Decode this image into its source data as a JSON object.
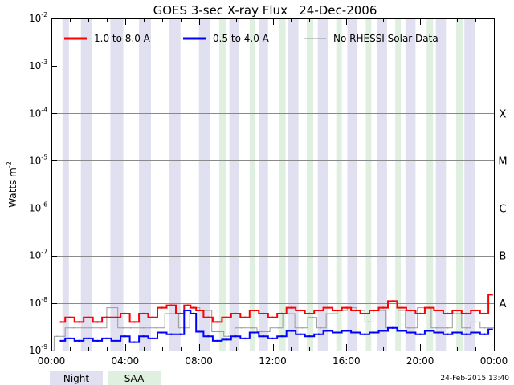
{
  "chart_data": {
    "type": "line",
    "title": "GOES 3-sec X-ray Flux   24-Dec-2006",
    "ylabel_main": "Watts m",
    "ylabel_sup": "-2",
    "xlabel": "",
    "x_unit": "hours UT",
    "xlim": [
      0,
      24
    ],
    "ylim": [
      1e-09,
      0.01
    ],
    "yscale": "log",
    "x_ticks": [
      {
        "value": 0,
        "label": "00:00"
      },
      {
        "value": 4,
        "label": "04:00"
      },
      {
        "value": 8,
        "label": "08:00"
      },
      {
        "value": 12,
        "label": "12:00"
      },
      {
        "value": 16,
        "label": "16:00"
      },
      {
        "value": 20,
        "label": "20:00"
      },
      {
        "value": 24,
        "label": "00:00"
      }
    ],
    "y_ticks": [
      {
        "exp": -2,
        "base": "10",
        "sup": "-2"
      },
      {
        "exp": -3,
        "base": "10",
        "sup": "-3"
      },
      {
        "exp": -4,
        "base": "10",
        "sup": "-4"
      },
      {
        "exp": -5,
        "base": "10",
        "sup": "-5"
      },
      {
        "exp": -6,
        "base": "10",
        "sup": "-6"
      },
      {
        "exp": -7,
        "base": "10",
        "sup": "-7"
      },
      {
        "exp": -8,
        "base": "10",
        "sup": "-8"
      },
      {
        "exp": -9,
        "base": "10",
        "sup": "-9"
      }
    ],
    "flare_classes": [
      {
        "exp": -4,
        "label": "X"
      },
      {
        "exp": -5,
        "label": "M"
      },
      {
        "exp": -6,
        "label": "C"
      },
      {
        "exp": -7,
        "label": "B"
      },
      {
        "exp": -8,
        "label": "A"
      }
    ],
    "night_intervals": [
      [
        0.6,
        0.95
      ],
      [
        1.6,
        2.2
      ],
      [
        3.2,
        3.9
      ],
      [
        4.75,
        5.4
      ],
      [
        6.4,
        7.0
      ],
      [
        8.0,
        8.6
      ],
      [
        9.65,
        10.15
      ],
      [
        11.25,
        11.75
      ],
      [
        12.85,
        13.4
      ],
      [
        14.45,
        15.0
      ],
      [
        16.05,
        16.6
      ],
      [
        17.65,
        18.2
      ],
      [
        19.2,
        19.75
      ],
      [
        20.85,
        21.4
      ],
      [
        22.4,
        23.0
      ]
    ],
    "saa_intervals": [
      [
        9.1,
        9.45
      ],
      [
        10.75,
        11.05
      ],
      [
        12.35,
        12.7
      ],
      [
        13.85,
        14.2
      ],
      [
        15.45,
        15.75
      ],
      [
        17.05,
        17.35
      ],
      [
        18.65,
        18.95
      ],
      [
        20.35,
        20.7
      ],
      [
        21.95,
        22.3
      ]
    ],
    "series": [
      {
        "name": "1.0 to 8.0 A",
        "color": "#ff0000",
        "x": [
          0.5,
          1.0,
          1.5,
          2.0,
          2.5,
          3.0,
          3.5,
          4.0,
          4.5,
          5.0,
          5.5,
          6.0,
          6.5,
          7.0,
          7.4,
          7.7,
          8.0,
          8.5,
          9.0,
          9.5,
          10.0,
          10.5,
          11.0,
          11.5,
          12.0,
          12.5,
          13.0,
          13.5,
          14.0,
          14.5,
          15.0,
          15.5,
          16.0,
          16.5,
          17.0,
          17.5,
          18.0,
          18.5,
          19.0,
          19.5,
          20.0,
          20.5,
          21.0,
          21.5,
          22.0,
          22.5,
          23.0,
          23.5,
          23.9
        ],
        "values": [
          4e-09,
          5e-09,
          4e-09,
          5e-09,
          4e-09,
          5e-09,
          5e-09,
          6e-09,
          4e-09,
          6e-09,
          5e-09,
          8e-09,
          9e-09,
          6e-09,
          9e-09,
          8e-09,
          7e-09,
          5e-09,
          4e-09,
          5e-09,
          6e-09,
          5e-09,
          7e-09,
          6e-09,
          5e-09,
          6e-09,
          8e-09,
          7e-09,
          6e-09,
          7e-09,
          8e-09,
          7e-09,
          8e-09,
          7e-09,
          6e-09,
          7e-09,
          8e-09,
          1.1e-08,
          8e-09,
          7e-09,
          6e-09,
          8e-09,
          7e-09,
          6e-09,
          7e-09,
          6e-09,
          7e-09,
          6e-09,
          1.5e-08
        ]
      },
      {
        "name": "0.5 to 4.0 A",
        "color": "#0000ff",
        "x": [
          0.5,
          1.0,
          1.5,
          2.0,
          2.5,
          3.0,
          3.5,
          4.0,
          4.5,
          5.0,
          5.5,
          6.0,
          6.5,
          7.0,
          7.4,
          7.7,
          8.0,
          8.5,
          9.0,
          9.5,
          10.0,
          10.5,
          11.0,
          11.5,
          12.0,
          12.5,
          13.0,
          13.5,
          14.0,
          14.5,
          15.0,
          15.5,
          16.0,
          16.5,
          17.0,
          17.5,
          18.0,
          18.5,
          19.0,
          19.5,
          20.0,
          20.5,
          21.0,
          21.5,
          22.0,
          22.5,
          23.0,
          23.5,
          23.9
        ],
        "values": [
          1.6e-09,
          1.8e-09,
          1.6e-09,
          1.8e-09,
          1.6e-09,
          1.8e-09,
          1.6e-09,
          2e-09,
          1.5e-09,
          2e-09,
          1.8e-09,
          2.4e-09,
          2.2e-09,
          2.2e-09,
          7e-09,
          6e-09,
          2.5e-09,
          2e-09,
          1.6e-09,
          1.7e-09,
          2e-09,
          1.8e-09,
          2.4e-09,
          2e-09,
          1.8e-09,
          2e-09,
          2.6e-09,
          2.2e-09,
          2e-09,
          2.2e-09,
          2.6e-09,
          2.4e-09,
          2.6e-09,
          2.4e-09,
          2.2e-09,
          2.4e-09,
          2.6e-09,
          3e-09,
          2.6e-09,
          2.4e-09,
          2.2e-09,
          2.6e-09,
          2.4e-09,
          2.2e-09,
          2.4e-09,
          2.2e-09,
          2.4e-09,
          2.2e-09,
          2.8e-09
        ]
      },
      {
        "name": "No RHESSI Solar Data",
        "color": "#999999",
        "x": [
          0.0,
          0.3,
          1.2,
          2.7,
          3.3,
          3.9,
          4.3,
          5.0,
          5.7,
          6.6,
          7.2,
          7.8,
          8.3,
          9.1,
          9.6,
          10.3,
          10.9,
          11.4,
          12.3,
          12.8,
          13.6,
          14.2,
          14.6,
          15.2,
          15.8,
          16.3,
          16.8,
          17.2,
          17.7,
          18.6,
          19.0,
          19.4,
          20.3,
          20.9,
          21.5,
          22.0,
          22.5,
          23.0,
          23.5,
          24.0
        ],
        "values": [
          1e-09,
          2e-09,
          3e-09,
          3e-09,
          8e-09,
          3e-09,
          3e-09,
          3e-09,
          3e-09,
          6e-09,
          3e-09,
          8e-09,
          7e-09,
          2.5e-09,
          2e-09,
          3e-09,
          3e-09,
          2.5e-09,
          3e-09,
          6e-09,
          3e-09,
          5e-09,
          3e-09,
          6e-09,
          7e-09,
          8e-09,
          7e-09,
          4e-09,
          7e-09,
          3e-09,
          7e-09,
          3e-09,
          8e-09,
          3e-09,
          3e-09,
          6e-09,
          3e-09,
          4e-09,
          3e-09,
          3e-09
        ]
      }
    ],
    "legend": {
      "items": [
        {
          "label": "1.0 to 8.0 A",
          "color": "#ff0000"
        },
        {
          "label": "0.5 to 4.0 A",
          "color": "#0000ff"
        },
        {
          "label": "No RHESSI Solar Data",
          "color": "#999999"
        }
      ],
      "placement": "top-left"
    },
    "footer_legend": {
      "night_label": "Night",
      "night_color": "#e0e0f0",
      "saa_label": "SAA",
      "saa_color": "#e0f0e0"
    },
    "timestamp": "24-Feb-2015 13:40"
  }
}
